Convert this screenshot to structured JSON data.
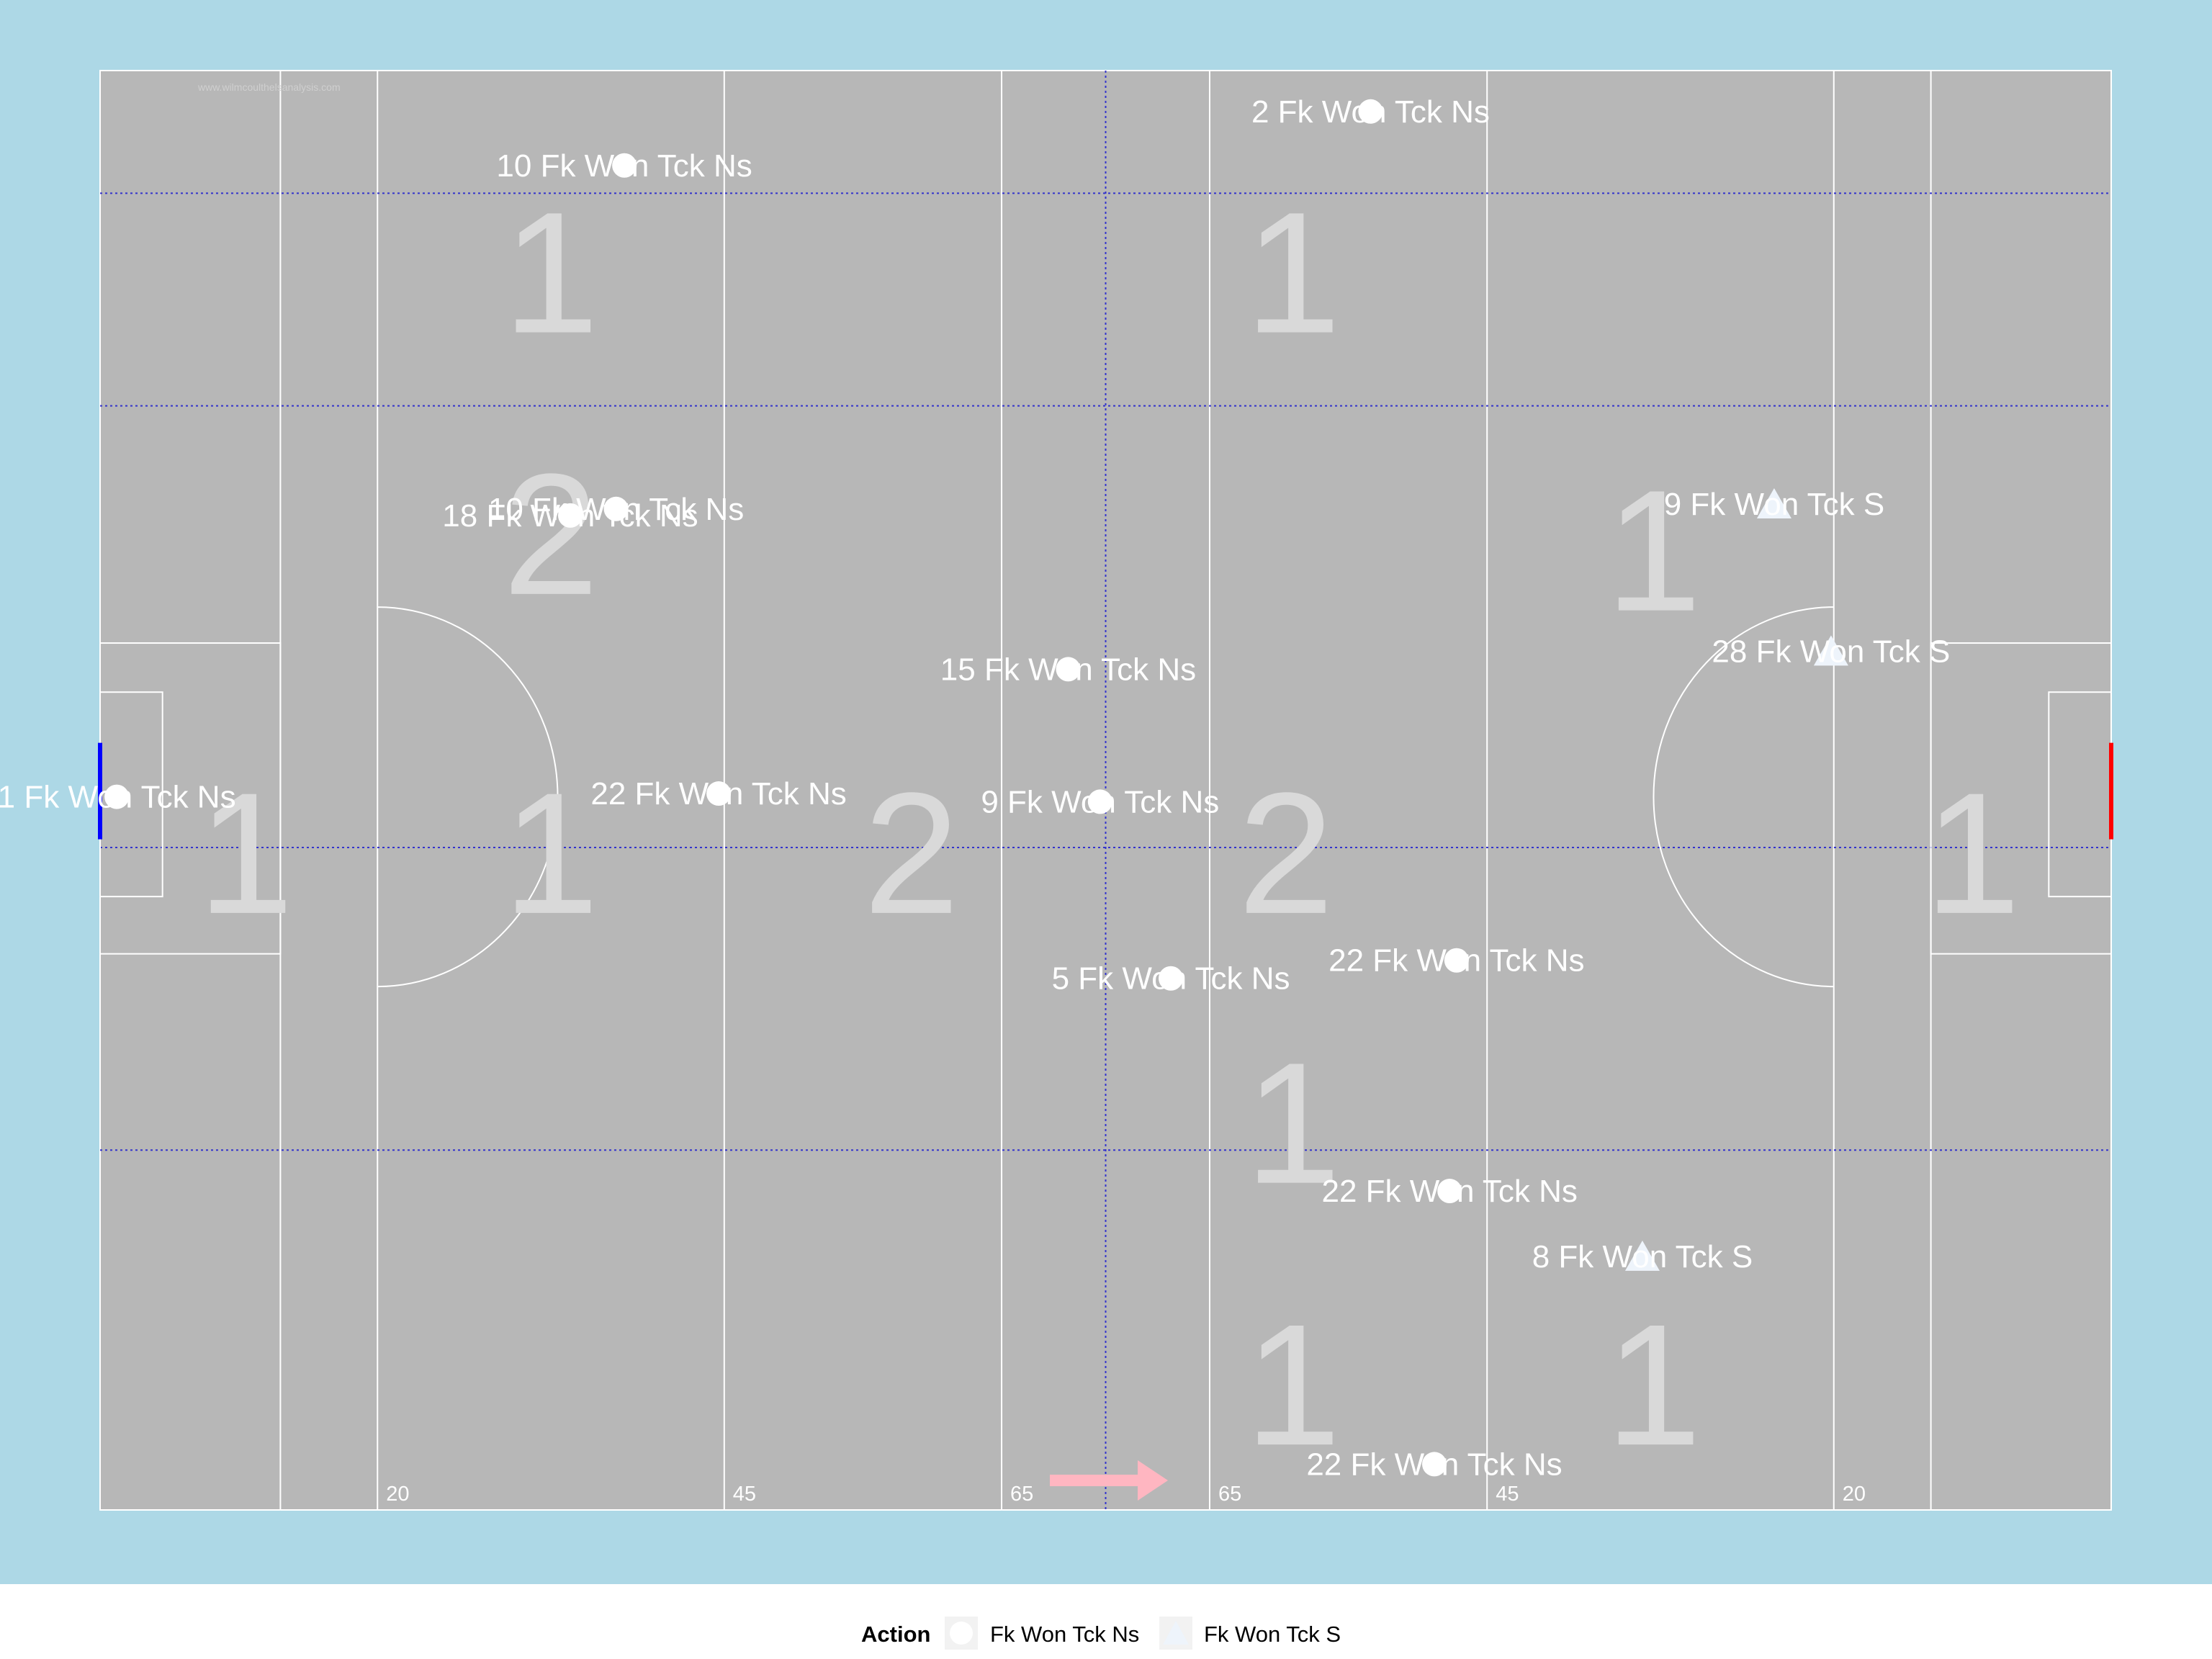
{
  "colors": {
    "background": "#add8e6",
    "pitch": "#b7b7b7",
    "lines": "#ffffff",
    "quarter_lines": "#3333cc",
    "zone_numbers": "#d9d9d9",
    "marker": "#ffffff",
    "marker_s": "#eef4fb",
    "left_goal": "#0000ff",
    "right_goal": "#ff0000",
    "arrow": "#ffb6c1"
  },
  "watermark": "www.wilmcoulthelsanalysis.com",
  "chart_data": {
    "type": "scatter",
    "xlim": [
      0,
      145
    ],
    "ylim": [
      0,
      88
    ],
    "distance_labels": [
      {
        "x": 20,
        "text": "20"
      },
      {
        "x": 45,
        "text": "45"
      },
      {
        "x": 65,
        "text": "65"
      },
      {
        "x": 80,
        "text": "65"
      },
      {
        "x": 100,
        "text": "45"
      },
      {
        "x": 125,
        "text": "20"
      }
    ],
    "zone_numbers": [
      {
        "x": 32.5,
        "y": 72,
        "text": "1"
      },
      {
        "x": 86,
        "y": 72,
        "text": "1"
      },
      {
        "x": 32.5,
        "y": 56,
        "text": "2"
      },
      {
        "x": 112,
        "y": 55,
        "text": "1"
      },
      {
        "x": 10.5,
        "y": 36.5,
        "text": "1"
      },
      {
        "x": 32.5,
        "y": 36.5,
        "text": "1"
      },
      {
        "x": 58.5,
        "y": 36.5,
        "text": "2"
      },
      {
        "x": 85.5,
        "y": 36.5,
        "text": "2"
      },
      {
        "x": 135,
        "y": 36.5,
        "text": "1"
      },
      {
        "x": 86,
        "y": 20,
        "text": "1"
      },
      {
        "x": 86,
        "y": 4,
        "text": "1"
      },
      {
        "x": 112,
        "y": 4,
        "text": "1"
      }
    ],
    "series": [
      {
        "name": "Fk Won Tck Ns",
        "shape": "circle",
        "points": [
          {
            "x": 1.2,
            "y": 43.6,
            "label": "1 Fk Won Tck Ns"
          },
          {
            "x": 91.6,
            "y": 85.5,
            "label": "2 Fk Won Tck Ns"
          },
          {
            "x": 77.2,
            "y": 32.5,
            "label": "5 Fk Won Tck Ns"
          },
          {
            "x": 72.1,
            "y": 43.3,
            "label": "9 Fk Won Tck Ns"
          },
          {
            "x": 37.8,
            "y": 82.2,
            "label": "10 Fk Won Tck Ns"
          },
          {
            "x": 37.2,
            "y": 61.2,
            "label": "10 Fk Won Tck Ns"
          },
          {
            "x": 69.8,
            "y": 51.4,
            "label": "15 Fk Won Tck Ns"
          },
          {
            "x": 33.9,
            "y": 60.8,
            "label": "18 Fk Won Tck Ns"
          },
          {
            "x": 44.6,
            "y": 43.8,
            "label": "22 Fk Won Tck Ns"
          },
          {
            "x": 97.8,
            "y": 33.6,
            "label": "22 Fk Won Tck Ns"
          },
          {
            "x": 97.3,
            "y": 19.5,
            "label": "22 Fk Won Tck Ns"
          },
          {
            "x": 96.2,
            "y": 2.8,
            "label": "22 Fk Won Tck Ns"
          }
        ]
      },
      {
        "name": "Fk Won Tck S",
        "shape": "triangle",
        "points": [
          {
            "x": 111.2,
            "y": 15.5,
            "label": "8 Fk Won Tck S"
          },
          {
            "x": 120.7,
            "y": 61.5,
            "label": "9 Fk Won Tck S"
          },
          {
            "x": 124.8,
            "y": 52.5,
            "label": "28 Fk Won Tck S"
          }
        ]
      }
    ],
    "legend": {
      "title": "Action",
      "position": "bottom",
      "entries": [
        "Fk Won Tck Ns",
        "Fk Won Tck S"
      ]
    }
  }
}
